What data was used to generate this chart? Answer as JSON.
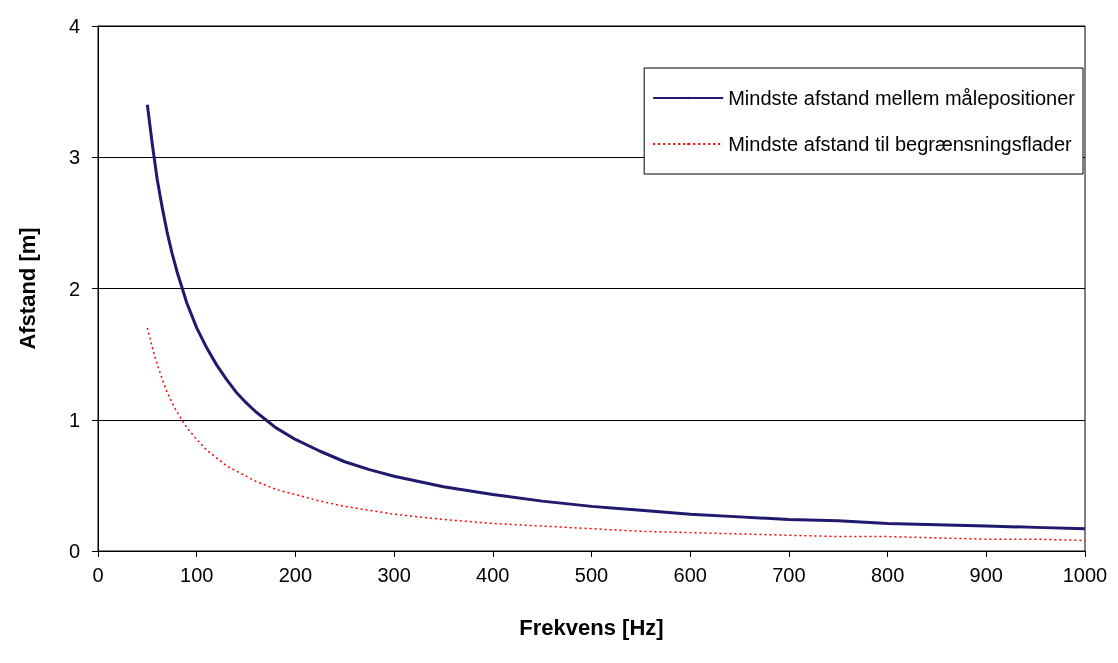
{
  "chart_data": {
    "type": "line",
    "xlabel": "Frekvens [Hz]",
    "ylabel": "Afstand [m]",
    "x": [
      50,
      55,
      60,
      65,
      70,
      75,
      80,
      90,
      100,
      110,
      120,
      130,
      140,
      150,
      160,
      170,
      180,
      200,
      225,
      250,
      275,
      300,
      350,
      400,
      450,
      500,
      550,
      600,
      650,
      700,
      750,
      800,
      850,
      900,
      950,
      1000
    ],
    "series": [
      {
        "name": "Mindste afstand mellem målepositioner",
        "color": "#1f1a6e",
        "line_style": "solid",
        "values": [
          3.4,
          3.1,
          2.83,
          2.62,
          2.43,
          2.27,
          2.13,
          1.89,
          1.7,
          1.55,
          1.42,
          1.31,
          1.21,
          1.13,
          1.06,
          1.0,
          0.94,
          0.85,
          0.76,
          0.68,
          0.62,
          0.57,
          0.49,
          0.43,
          0.38,
          0.34,
          0.31,
          0.28,
          0.26,
          0.24,
          0.23,
          0.21,
          0.2,
          0.19,
          0.18,
          0.17
        ]
      },
      {
        "name": "Mindste afstand til begrænsningsflader",
        "color": "#ff0000",
        "line_style": "dotted",
        "values": [
          1.7,
          1.55,
          1.42,
          1.31,
          1.21,
          1.13,
          1.06,
          0.94,
          0.85,
          0.77,
          0.71,
          0.65,
          0.61,
          0.57,
          0.53,
          0.5,
          0.47,
          0.43,
          0.38,
          0.34,
          0.31,
          0.28,
          0.24,
          0.21,
          0.19,
          0.17,
          0.15,
          0.14,
          0.13,
          0.12,
          0.11,
          0.11,
          0.1,
          0.09,
          0.09,
          0.08
        ]
      }
    ],
    "xlim": [
      0,
      1000
    ],
    "xticks": [
      0,
      100,
      200,
      300,
      400,
      500,
      600,
      700,
      800,
      900,
      1000
    ],
    "ylim": [
      0,
      4
    ],
    "yticks": [
      0,
      1,
      2,
      3,
      4
    ],
    "grid": "y",
    "legend": "top right",
    "marker": "none"
  }
}
